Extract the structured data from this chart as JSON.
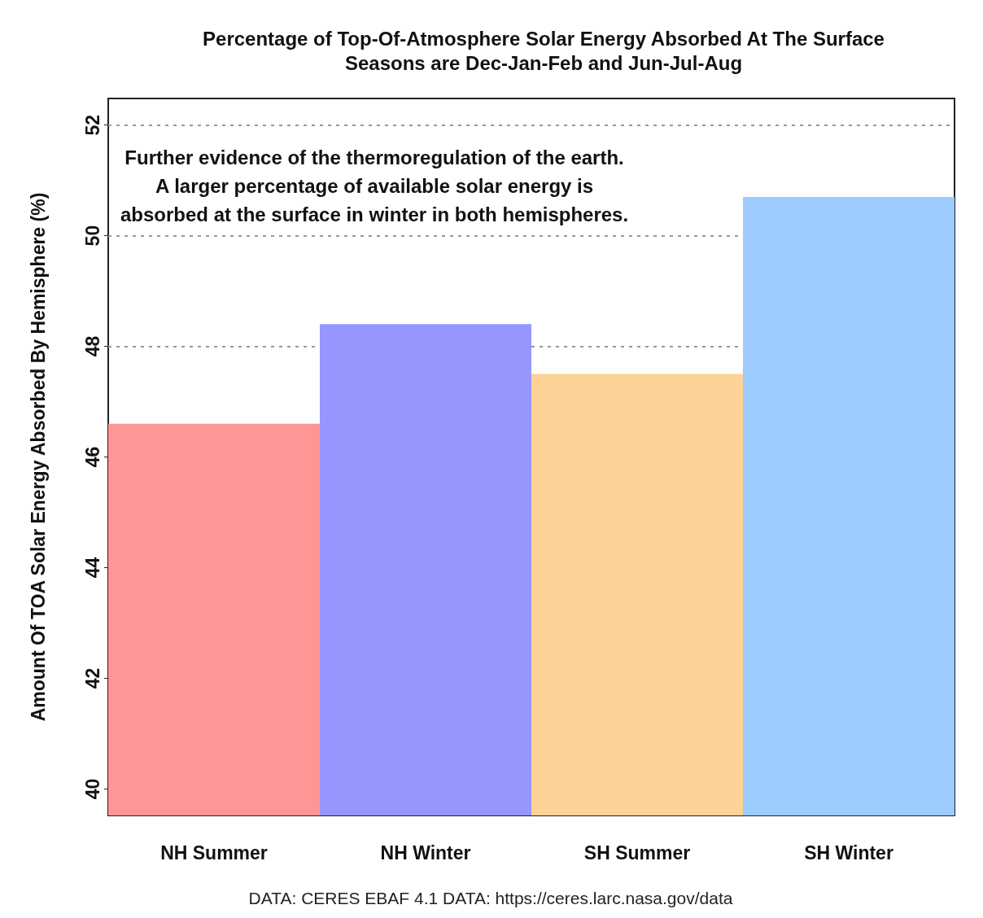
{
  "chart_data": {
    "type": "bar",
    "title": "Percentage of Top-Of-Atmosphere Solar Energy Absorbed At The Surface",
    "subtitle": "Seasons are Dec-Jan-Feb and Jun-Jul-Aug",
    "ylabel": "Amount Of TOA Solar Energy Absorbed By Hemisphere (%)",
    "categories": [
      "NH Summer",
      "NH Winter",
      "SH Summer",
      "SH Winter"
    ],
    "values": [
      46.6,
      48.4,
      47.5,
      50.7
    ],
    "colors": [
      "#ff9696",
      "#9696ff",
      "#fdd296",
      "#9ecbfd"
    ],
    "ylim": [
      39.52,
      52.48
    ],
    "yticks": [
      40,
      42,
      44,
      46,
      48,
      50,
      52
    ],
    "grid": "y",
    "annotations": [
      "Further evidence of the thermoregulation of the earth.\nA larger percentage of available solar energy is\nabsorbed at the surface in winter in both hemispheres.",
      "DATA: CERES EBAF 4.1 DATA: https://ceres.larc.nasa.gov/data"
    ]
  }
}
